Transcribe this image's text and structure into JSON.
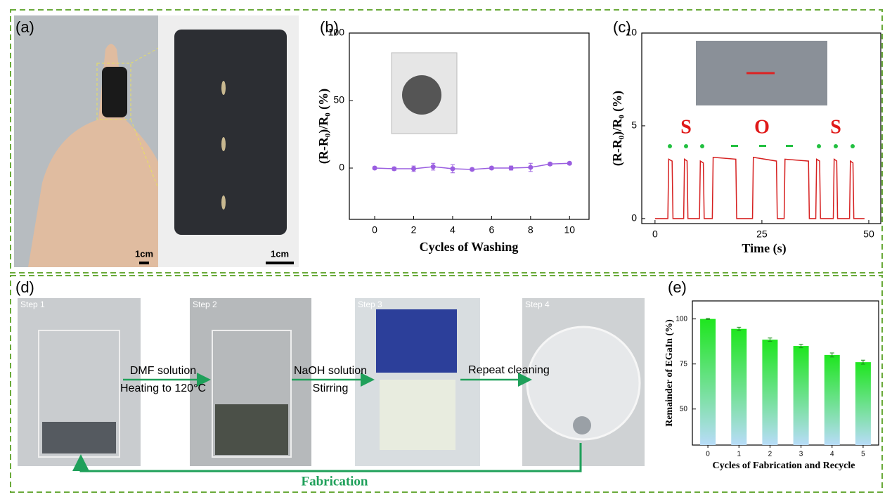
{
  "figure": {
    "panel_a": "(a)",
    "panel_d": "(d)",
    "scale_bars": [
      "1cm",
      "1cm"
    ],
    "steps": [
      "Step 1",
      "Step 2",
      "Step 3",
      "Step 4"
    ],
    "processes": [
      {
        "above": "DMF solution",
        "below": "Heating to 120°C"
      },
      {
        "above": "NaOH solution",
        "below": "Stirring"
      },
      {
        "above": "Repeat cleaning"
      }
    ],
    "loop_label": "Fabrication"
  },
  "chart_data": [
    {
      "type": "line",
      "panel": "(b)",
      "x": [
        0,
        1,
        2,
        3,
        4,
        5,
        6,
        7,
        8,
        9,
        10
      ],
      "series": [
        {
          "color": "#9a5ee0",
          "values": [
            0,
            -0.5,
            -0.5,
            1,
            -0.5,
            -1,
            0,
            0,
            0.5,
            3,
            3.5
          ],
          "errors": [
            1,
            1.2,
            2,
            2.5,
            3,
            1,
            1,
            1.5,
            3,
            1,
            1
          ]
        }
      ],
      "xlabel": "Cycles of Washing",
      "ylabel": "(R-R₀)/R₀ (%)",
      "xlim": [
        -1.3,
        11
      ],
      "ylim": [
        -38,
        100
      ],
      "xticks": [
        0,
        2,
        4,
        6,
        8,
        10
      ],
      "yticks": [
        0,
        50,
        100
      ]
    },
    {
      "type": "line",
      "panel": "(c)",
      "x": [
        0,
        3.0,
        3.2,
        4.0,
        4.2,
        6.7,
        6.9,
        7.5,
        7.7,
        10.4,
        10.6,
        11.3,
        11.5,
        13.4,
        13.6,
        18.9,
        19.1,
        22.8,
        23.0,
        28.4,
        28.6,
        30.2,
        30.4,
        35.9,
        36.1,
        37.6,
        37.8,
        38.5,
        38.7,
        41.7,
        41.9,
        42.5,
        42.7,
        45.5,
        45.7,
        46.3,
        46.5,
        49
      ],
      "series": [
        {
          "color": "#d62020",
          "values": [
            0,
            0,
            3.2,
            3.1,
            0,
            0,
            3.2,
            3.1,
            0,
            0,
            3.1,
            3.0,
            0,
            0,
            3.3,
            3.2,
            0,
            0,
            3.3,
            3.1,
            0,
            0,
            3.2,
            3.1,
            0,
            0,
            3.2,
            3.1,
            0,
            0,
            3.2,
            3.1,
            0,
            0,
            3.1,
            3.0,
            0,
            0
          ]
        }
      ],
      "annotations": [
        "S",
        "O",
        "S"
      ],
      "xlabel": "Time (s)",
      "ylabel": "(R-R₀)/R₀ (%)",
      "xlim": [
        -3.1,
        52.8
      ],
      "ylim": [
        -0.27,
        10
      ],
      "xticks": [
        0,
        25,
        50
      ],
      "yticks": [
        0,
        5,
        10
      ]
    },
    {
      "type": "bar",
      "panel": "(e)",
      "categories": [
        "0",
        "1",
        "2",
        "3",
        "4",
        "5"
      ],
      "values": [
        100,
        94.5,
        88.5,
        85,
        80,
        76
      ],
      "errors": [
        0.3,
        0.9,
        0.9,
        1,
        1.1,
        1.1
      ],
      "gradient": [
        "#1ee61e",
        "#b8dcf8"
      ],
      "xlabel": "Cycles of Fabrication and Recycle",
      "ylabel": "Remainder of EGaIn (%)",
      "ylim": [
        30,
        110
      ],
      "yticks": [
        50,
        75,
        100
      ]
    }
  ]
}
